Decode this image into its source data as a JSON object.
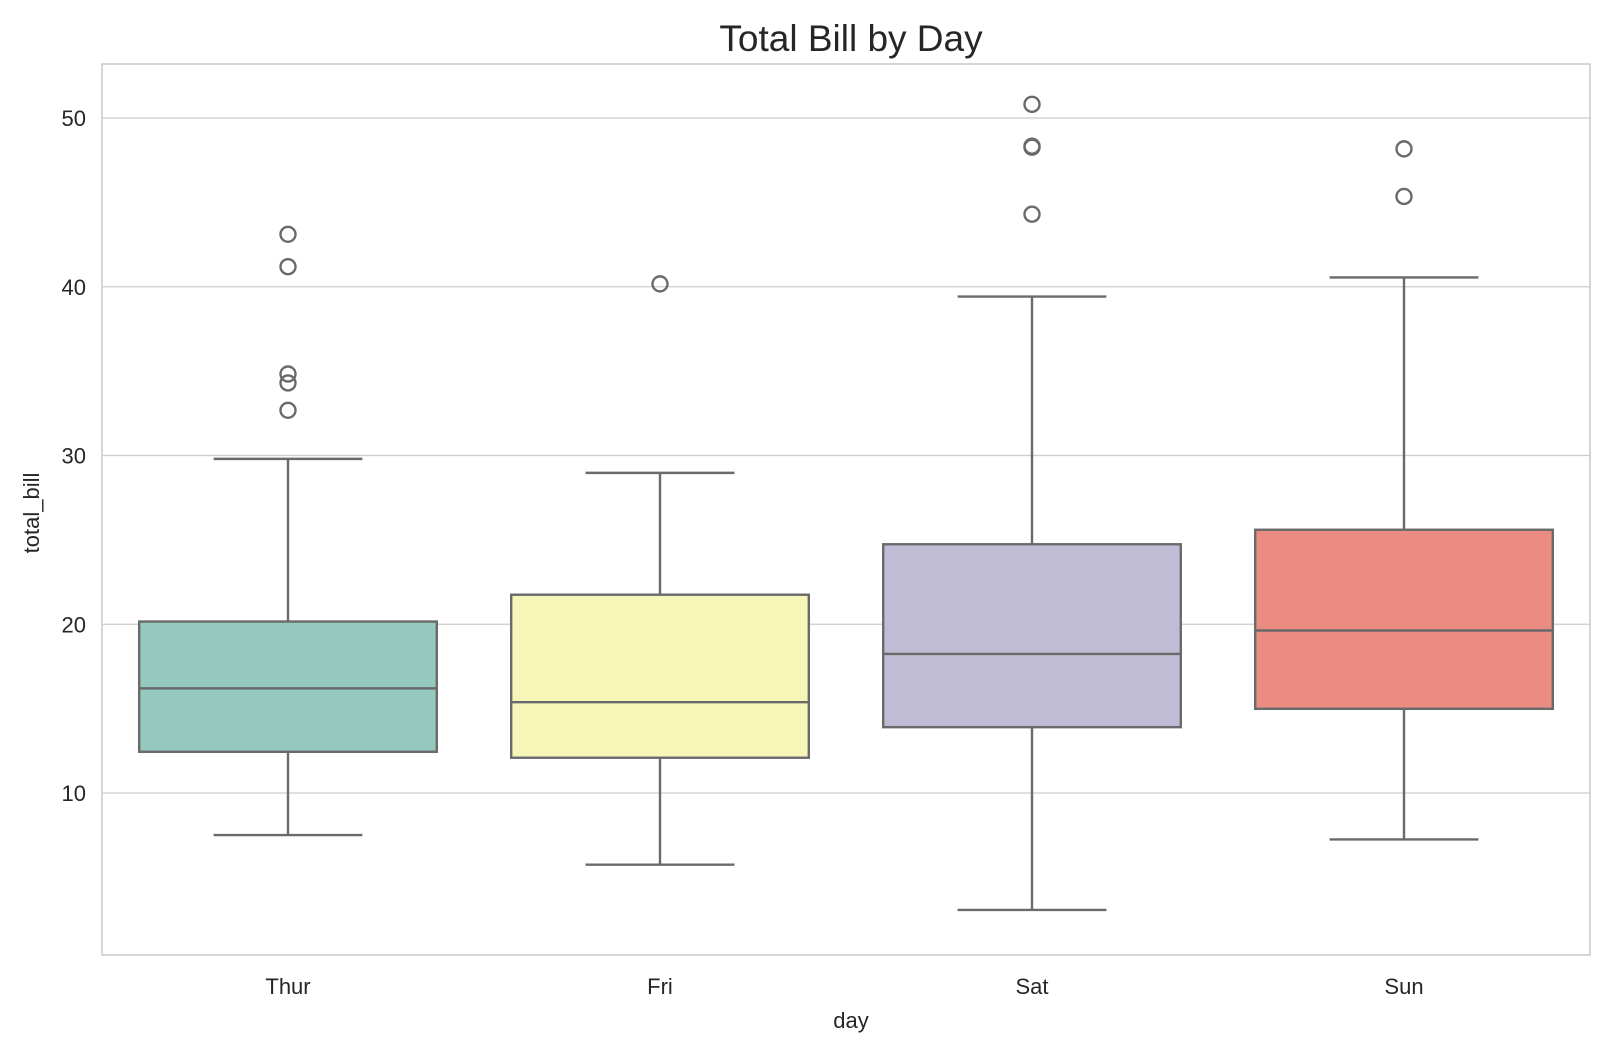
{
  "chart_data": {
    "type": "box",
    "title": "Total Bill by Day",
    "xlabel": "day",
    "ylabel": "total_bill",
    "ylim": [
      0.4,
      53.2
    ],
    "yticks": [
      10,
      20,
      30,
      40,
      50
    ],
    "grid": true,
    "categories": [
      "Thur",
      "Fri",
      "Sat",
      "Sun"
    ],
    "boxes": [
      {
        "category": "Thur",
        "whisker_low": 7.51,
        "q1": 12.44,
        "median": 16.2,
        "q3": 20.16,
        "whisker_high": 29.8,
        "outliers": [
          32.68,
          34.3,
          34.83,
          41.19,
          43.11
        ],
        "color": "#95c9bf"
      },
      {
        "category": "Fri",
        "whisker_low": 5.75,
        "q1": 12.09,
        "median": 15.38,
        "q3": 21.75,
        "whisker_high": 28.97,
        "outliers": [
          40.17
        ],
        "color": "#f7f6b9"
      },
      {
        "category": "Sat",
        "whisker_low": 3.07,
        "q1": 13.9,
        "median": 18.24,
        "q3": 24.74,
        "whisker_high": 39.42,
        "outliers": [
          44.3,
          48.27,
          48.33,
          50.81
        ],
        "color": "#c1bcd6"
      },
      {
        "category": "Sun",
        "whisker_low": 7.25,
        "q1": 14.99,
        "median": 19.63,
        "q3": 25.6,
        "whisker_high": 40.55,
        "outliers": [
          45.35,
          48.17
        ],
        "color": "#ea8c81"
      }
    ]
  }
}
